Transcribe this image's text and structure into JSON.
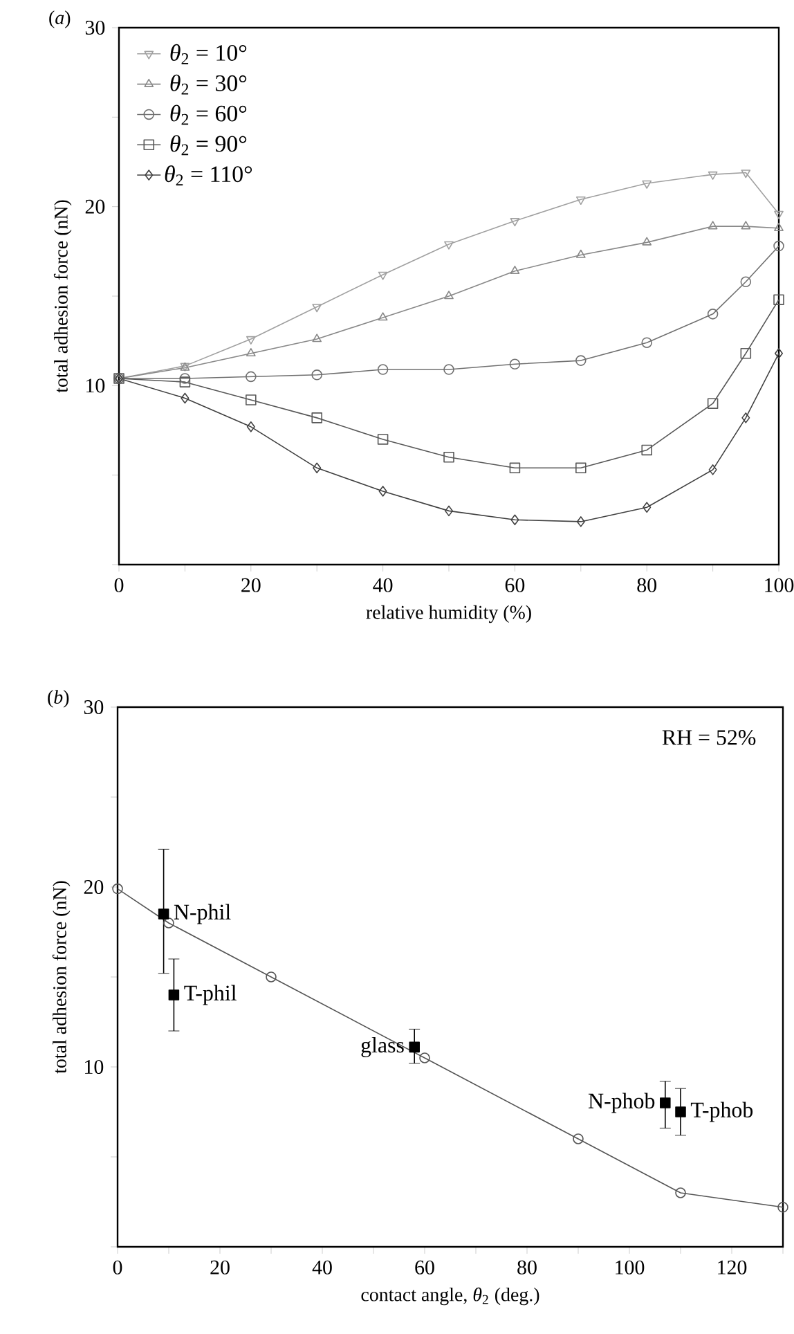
{
  "chart_data": [
    {
      "type": "line",
      "title": "(*a*)",
      "xlabel": "relative humidity (%)",
      "ylabel": "total adhesion force (nN)",
      "x": [
        0,
        10,
        20,
        30,
        40,
        50,
        60,
        70,
        80,
        90,
        95,
        100
      ],
      "series": [
        {
          "name": "*θ*$_{2}$ = 10°",
          "color": "#a0a0a0",
          "marker": "triangle_down",
          "values": [
            10.4,
            11.1,
            12.6,
            14.4,
            16.2,
            17.9,
            19.2,
            20.4,
            21.3,
            21.8,
            21.9,
            19.6
          ]
        },
        {
          "name": "*θ*$_{2}$ = 30°",
          "color": "#888888",
          "marker": "triangle",
          "values": [
            10.4,
            11.0,
            11.8,
            12.6,
            13.8,
            15.0,
            16.4,
            17.3,
            18.0,
            18.9,
            18.9,
            18.8
          ]
        },
        {
          "name": "*θ*$_{2}$ = 60°",
          "color": "#707070",
          "marker": "circle",
          "values": [
            10.4,
            10.4,
            10.5,
            10.6,
            10.9,
            10.9,
            11.2,
            11.4,
            12.4,
            14.0,
            15.8,
            17.8
          ]
        },
        {
          "name": "*θ*$_{2}$ = 90°",
          "color": "#585858",
          "marker": "square",
          "values": [
            10.4,
            10.2,
            9.2,
            8.2,
            7.0,
            6.0,
            5.4,
            5.4,
            6.4,
            9.0,
            11.8,
            14.8
          ]
        },
        {
          "name": "*θ*$_{2}$ = 110°",
          "color": "#404040",
          "marker": "diamond",
          "values": [
            10.4,
            9.3,
            7.7,
            5.4,
            4.1,
            3.0,
            2.5,
            2.4,
            3.2,
            5.3,
            8.2,
            11.8
          ]
        }
      ],
      "xlim": [
        0,
        100
      ],
      "ylim": [
        0,
        30
      ],
      "xticks": [
        0,
        {
          "value": 10,
          "label": null
        },
        20,
        {
          "value": 30,
          "label": null
        },
        40,
        {
          "value": 50,
          "label": null
        },
        60,
        {
          "value": 70,
          "label": null
        },
        80,
        {
          "value": 90,
          "label": null
        },
        100
      ],
      "yticks": [
        {
          "value": 0,
          "label": null
        },
        {
          "value": 5,
          "label": null
        },
        10,
        {
          "value": 15,
          "label": null
        },
        20,
        {
          "value": 25,
          "label": null
        },
        30
      ],
      "legend": "top left"
    },
    {
      "type": "line",
      "title": "(*b*)",
      "xlabel": "contact angle, *θ*$_{2}$ (deg.)",
      "ylabel": "total adhesion force (nN)",
      "series": [
        {
          "type": "line",
          "color": "#555555",
          "marker": "circle",
          "x": [
            0,
            10,
            30,
            60,
            90,
            110,
            130
          ],
          "values": [
            19.9,
            18.0,
            15.0,
            10.5,
            6.0,
            3.0,
            2.2
          ]
        },
        {
          "type": "scatter",
          "color": "#000000",
          "marker": "square",
          "x": [
            9,
            11,
            58,
            107,
            110
          ],
          "values": [
            18.5,
            14.0,
            11.1,
            8.0,
            7.5
          ],
          "errors": [
            [
              15.2,
              22.1
            ],
            [
              12.0,
              16.0
            ],
            [
              10.2,
              12.1
            ],
            [
              6.6,
              9.2
            ],
            [
              6.2,
              8.8
            ]
          ]
        }
      ],
      "annotations": [
        "RH = 52%",
        {
          "text": "N-phil",
          "x": 9,
          "y": 18.5
        },
        {
          "text": "T-phil",
          "x": 11,
          "y": 14.0
        },
        {
          "text": "glass",
          "x": 58,
          "y": 11.1
        },
        {
          "text": "N-phob",
          "x": 107,
          "y": 8.0
        },
        {
          "text": "T-phob",
          "x": 110,
          "y": 7.5
        }
      ],
      "xlim": [
        0,
        130
      ],
      "ylim": [
        0,
        30
      ],
      "xticks": [
        0,
        {
          "value": 10,
          "label": null
        },
        20,
        {
          "value": 30,
          "label": null
        },
        40,
        {
          "value": 50,
          "label": null
        },
        60,
        {
          "value": 70,
          "label": null
        },
        80,
        {
          "value": 90,
          "label": null
        },
        100,
        {
          "value": 110,
          "label": null
        },
        120,
        {
          "value": 130,
          "label": null
        }
      ],
      "yticks": [
        {
          "value": 0,
          "label": null
        },
        {
          "value": 5,
          "label": null
        },
        10,
        {
          "value": 15,
          "label": null
        },
        20,
        {
          "value": 25,
          "label": null
        },
        30
      ]
    }
  ]
}
